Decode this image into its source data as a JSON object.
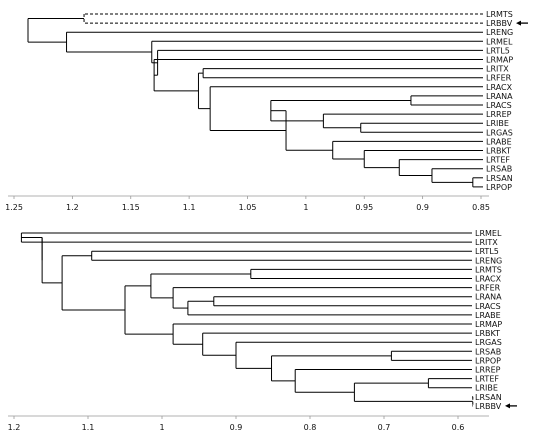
{
  "chart_data": [
    {
      "type": "dendrogram",
      "title": "",
      "xlabel": "",
      "ylabel": "",
      "xlim": [
        1.26,
        0.84
      ],
      "x_reversed": true,
      "ticks": [
        1.25,
        1.2,
        1.15,
        1.1,
        1.05,
        1,
        0.95,
        0.9,
        0.85
      ],
      "tick_labels": [
        "1.25",
        "1.2",
        "1.15",
        "1.1",
        "1.05",
        "1",
        "0.95",
        "0.9",
        "0.85"
      ],
      "leaves": [
        "LRMTS",
        "LRBBV",
        "LRENG",
        "LRMEL",
        "LRTL5",
        "LRMAP",
        "LRITX",
        "LRFER",
        "LRACX",
        "LRANA",
        "LRACS",
        "LRREP",
        "LRIBE",
        "LRGAS",
        "LRABE",
        "LRBKT",
        "LRTEF",
        "LRSAB",
        "LRSAN",
        "LRPOP"
      ],
      "dashed_leaves": [
        "LRMTS",
        "LRBBV"
      ],
      "arrow_leaf": "LRBBV",
      "merges": [
        {
          "a": "LRMTS",
          "b": "LRBBV",
          "height": 1.19,
          "dashed": true
        },
        {
          "a": "LRSAN",
          "b": "LRPOP",
          "height": 0.857
        },
        {
          "a": "LRSAB",
          "b": "n2",
          "height": 0.892
        },
        {
          "a": "LRTEF",
          "b": "n3",
          "height": 0.92
        },
        {
          "a": "LRBKT",
          "b": "n4",
          "height": 0.95
        },
        {
          "a": "LRABE",
          "b": "n5",
          "height": 0.977
        },
        {
          "a": "LRIBE",
          "b": "LRGAS",
          "height": 0.953
        },
        {
          "a": "LRREP",
          "b": "n7",
          "height": 0.985
        },
        {
          "a": "LRANA",
          "b": "LRACS",
          "height": 0.91
        },
        {
          "a": "n9",
          "b": "n8",
          "height": 1.03
        },
        {
          "a": "n10",
          "b": "n6",
          "height": 1.017
        },
        {
          "a": "LRACX",
          "b": "n11",
          "height": 1.082
        },
        {
          "a": "LRITX",
          "b": "LRFER",
          "height": 1.088
        },
        {
          "a": "n13",
          "b": "n12",
          "height": 1.092
        },
        {
          "a": "LRMAP",
          "b": "n14",
          "height": 1.13
        },
        {
          "a": "LRTL5",
          "b": "n15",
          "height": 1.127
        },
        {
          "a": "LRMEL",
          "b": "n16",
          "height": 1.132
        },
        {
          "a": "LRENG",
          "b": "n17",
          "height": 1.205
        },
        {
          "a": "n1",
          "b": "n18",
          "height": 1.238
        }
      ]
    },
    {
      "type": "dendrogram",
      "title": "",
      "xlabel": "",
      "ylabel": "",
      "xlim": [
        1.23,
        0.56
      ],
      "x_reversed": true,
      "ticks": [
        1.2,
        1.1,
        1,
        0.9,
        0.8,
        0.7,
        0.6
      ],
      "tick_labels": [
        "1.2",
        "1.1",
        "1",
        "0.9",
        "0.8",
        "0.7",
        "0.6"
      ],
      "leaves": [
        "LRMEL",
        "LRITX",
        "LRTL5",
        "LRENG",
        "LRMTS",
        "LRACX",
        "LRFER",
        "LRANA",
        "LRACS",
        "LRABE",
        "LRMAP",
        "LRBKT",
        "LRGAS",
        "LRSAB",
        "LRPOP",
        "LRREP",
        "LRTEF",
        "LRIBE",
        "LRSAN",
        "LRBBV"
      ],
      "dashed_leaves": [
        "LRSAN",
        "LRBBV"
      ],
      "arrow_leaf": "LRBBV",
      "merges": [
        {
          "a": "LRMEL",
          "b": "LRITX",
          "height": 1.19
        },
        {
          "a": "LRTL5",
          "b": "LRENG",
          "height": 1.095
        },
        {
          "a": "LRMTS",
          "b": "LRACX",
          "height": 0.88
        },
        {
          "a": "LRANA",
          "b": "LRACS",
          "height": 0.93
        },
        {
          "a": "n4",
          "b": "LRABE",
          "height": 0.965
        },
        {
          "a": "LRFER",
          "b": "n5",
          "height": 0.985
        },
        {
          "a": "n3",
          "b": "n6",
          "height": 1.015
        },
        {
          "a": "LRSAB",
          "b": "LRPOP",
          "height": 0.69
        },
        {
          "a": "LRTEF",
          "b": "LRIBE",
          "height": 0.64
        },
        {
          "a": "LRSAN",
          "b": "LRBBV",
          "height": 0.58,
          "dashed": true
        },
        {
          "a": "n9",
          "b": "n10",
          "height": 0.74
        },
        {
          "a": "LRREP",
          "b": "n11",
          "height": 0.82
        },
        {
          "a": "n8",
          "b": "n12",
          "height": 0.852
        },
        {
          "a": "LRGAS",
          "b": "n13",
          "height": 0.9
        },
        {
          "a": "LRBKT",
          "b": "n14",
          "height": 0.945
        },
        {
          "a": "LRMAP",
          "b": "n15",
          "height": 0.985
        },
        {
          "a": "n7",
          "b": "n16",
          "height": 1.05
        },
        {
          "a": "n2",
          "b": "n17",
          "height": 1.135
        },
        {
          "a": "n18",
          "b": "n1",
          "height": 1.162
        },
        {
          "a": "n19",
          "b": "n1",
          "height": 1.162
        }
      ]
    }
  ]
}
